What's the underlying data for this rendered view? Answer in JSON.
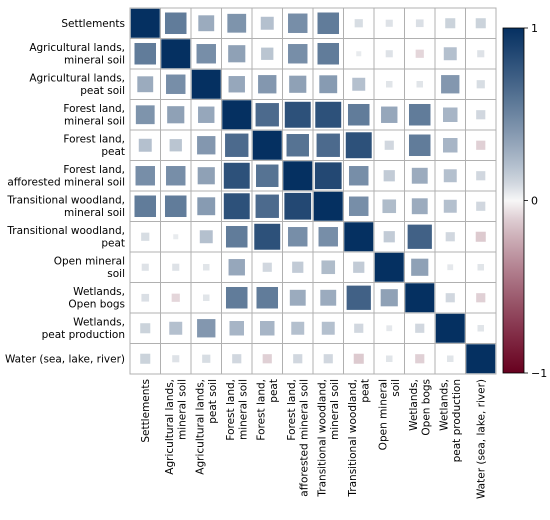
{
  "chart_data": {
    "type": "heatmap",
    "title": "",
    "xlabel": "",
    "ylabel": "",
    "row_labels": [
      [
        "Settlements"
      ],
      [
        "Agricultural lands,",
        "mineral soil"
      ],
      [
        "Agricultural lands,",
        "peat soil"
      ],
      [
        "Forest land,",
        "mineral soil"
      ],
      [
        "Forest land,",
        "peat"
      ],
      [
        "Forest land,",
        "afforested mineral soil"
      ],
      [
        "Transitional woodland,",
        "mineral soil"
      ],
      [
        "Transitional woodland,",
        "peat"
      ],
      [
        "Open mineral",
        "soil"
      ],
      [
        "Wetlands,",
        "Open bogs"
      ],
      [
        "Wetlands,",
        "peat production"
      ],
      [
        "Water (sea, lake, river)"
      ]
    ],
    "col_labels": [
      [
        "Settlements"
      ],
      [
        "Agricultural lands,",
        "mineral soil"
      ],
      [
        "Agricultural lands,",
        "peat soil"
      ],
      [
        "Forest land,",
        "mineral soil"
      ],
      [
        "Forest land,",
        "peat"
      ],
      [
        "Forest land,",
        "afforested mineral soil"
      ],
      [
        "Transitional woodland,",
        "mineral soil"
      ],
      [
        "Transitional woodland,",
        "peat"
      ],
      [
        "Open mineral",
        "soil"
      ],
      [
        "Wetlands,",
        "Open bogs"
      ],
      [
        "Wetlands,",
        "peat production"
      ],
      [
        "Water (sea, lake, river)"
      ]
    ],
    "values": [
      [
        1.0,
        0.55,
        0.3,
        0.42,
        0.2,
        0.45,
        0.55,
        0.08,
        0.06,
        0.07,
        0.12,
        0.12
      ],
      [
        0.55,
        1.0,
        0.45,
        0.35,
        0.18,
        0.45,
        0.55,
        0.03,
        0.06,
        -0.08,
        0.2,
        0.06
      ],
      [
        0.3,
        0.45,
        1.0,
        0.32,
        0.4,
        0.35,
        0.38,
        0.2,
        0.05,
        0.05,
        0.4,
        0.08
      ],
      [
        0.42,
        0.35,
        0.32,
        1.0,
        0.65,
        0.8,
        0.8,
        0.55,
        0.32,
        0.55,
        0.25,
        0.1
      ],
      [
        0.2,
        0.18,
        0.4,
        0.65,
        1.0,
        0.6,
        0.65,
        0.8,
        0.1,
        0.55,
        0.25,
        -0.1
      ],
      [
        0.45,
        0.45,
        0.35,
        0.8,
        0.6,
        1.0,
        0.85,
        0.45,
        0.15,
        0.3,
        0.2,
        0.1
      ],
      [
        0.55,
        0.55,
        0.38,
        0.8,
        0.65,
        0.85,
        1.0,
        0.45,
        0.22,
        0.3,
        0.2,
        0.1
      ],
      [
        0.08,
        0.03,
        0.2,
        0.55,
        0.8,
        0.45,
        0.45,
        1.0,
        0.15,
        0.7,
        0.1,
        -0.12
      ],
      [
        0.06,
        0.06,
        0.05,
        0.32,
        0.1,
        0.15,
        0.22,
        0.15,
        1.0,
        0.35,
        0.04,
        0.05
      ],
      [
        0.07,
        -0.08,
        0.05,
        0.55,
        0.55,
        0.3,
        0.3,
        0.7,
        0.35,
        1.0,
        0.1,
        -0.1
      ],
      [
        0.12,
        0.2,
        0.4,
        0.25,
        0.25,
        0.2,
        0.2,
        0.1,
        0.04,
        0.1,
        1.0,
        0.05
      ],
      [
        0.12,
        0.06,
        0.08,
        0.1,
        -0.1,
        0.1,
        0.1,
        -0.12,
        0.05,
        -0.1,
        0.05,
        1.0
      ]
    ],
    "colorbar": {
      "range": [
        -1,
        1
      ],
      "ticks": [
        {
          "value": 1,
          "label": "1"
        },
        {
          "value": 0,
          "label": "0"
        },
        {
          "value": -1,
          "label": "−1"
        }
      ],
      "colors": {
        "negative": "#67001f",
        "mid": "#f7f7f7",
        "positive": "#053061"
      }
    },
    "grid": true,
    "grid_color": "#b0b0b0"
  }
}
